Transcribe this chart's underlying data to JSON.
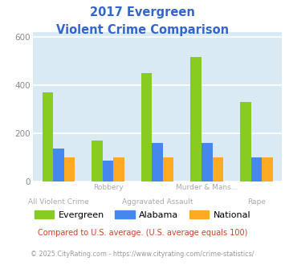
{
  "title_line1": "2017 Evergreen",
  "title_line2": "Violent Crime Comparison",
  "title_color": "#3366cc",
  "categories": [
    "All Violent Crime",
    "Robbery",
    "Aggravated Assault",
    "Murder & Mans...",
    "Rape"
  ],
  "row1_labels": [
    "",
    "Robbery",
    "",
    "Murder & Mans...",
    ""
  ],
  "row2_labels": [
    "All Violent Crime",
    "",
    "Aggravated Assault",
    "",
    "Rape"
  ],
  "series": {
    "Evergreen": [
      370,
      170,
      450,
      515,
      330
    ],
    "Alabama": [
      135,
      85,
      160,
      160,
      100
    ],
    "National": [
      100,
      100,
      100,
      100,
      100
    ]
  },
  "colors": {
    "Evergreen": "#88cc22",
    "Alabama": "#4488ee",
    "National": "#ffaa22"
  },
  "ylim": [
    0,
    620
  ],
  "yticks": [
    0,
    200,
    400,
    600
  ],
  "background_color": "#daeaf5",
  "grid_color": "#ffffff",
  "footer_text": "© 2025 CityRating.com - https://www.cityrating.com/crime-statistics/",
  "compared_text": "Compared to U.S. average. (U.S. average equals 100)",
  "compared_color": "#cc4422",
  "footer_color": "#999999",
  "label_color": "#aaaaaa"
}
